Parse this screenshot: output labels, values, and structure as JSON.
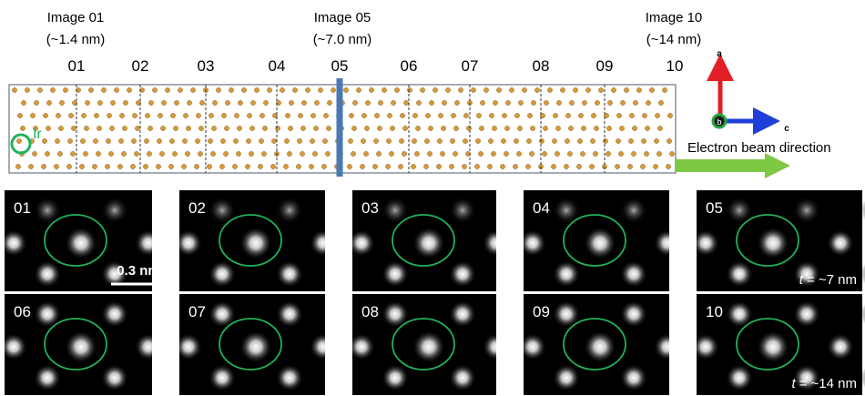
{
  "header": {
    "markers": [
      {
        "title": "Image 01",
        "depth": "(~1.4 nm)"
      },
      {
        "title": "Image 05",
        "depth": "(~7.0 nm)"
      },
      {
        "title": "Image 10",
        "depth": "(~14 nm)"
      }
    ]
  },
  "crystal": {
    "slices": [
      "01",
      "02",
      "03",
      "04",
      "05",
      "06",
      "07",
      "08",
      "09",
      "10"
    ],
    "element": "Ir"
  },
  "axes": {
    "a": "a",
    "b": "b",
    "c": "c"
  },
  "beam": "Electron beam direction",
  "panels": [
    "01",
    "02",
    "03",
    "04",
    "05",
    "06",
    "07",
    "08",
    "09",
    "10"
  ],
  "scale_bar": "0.3 nm",
  "thickness": [
    {
      "symbol": "t",
      "text": "= ~7 nm"
    },
    {
      "symbol": "t",
      "text": "= ~14 nm"
    }
  ]
}
